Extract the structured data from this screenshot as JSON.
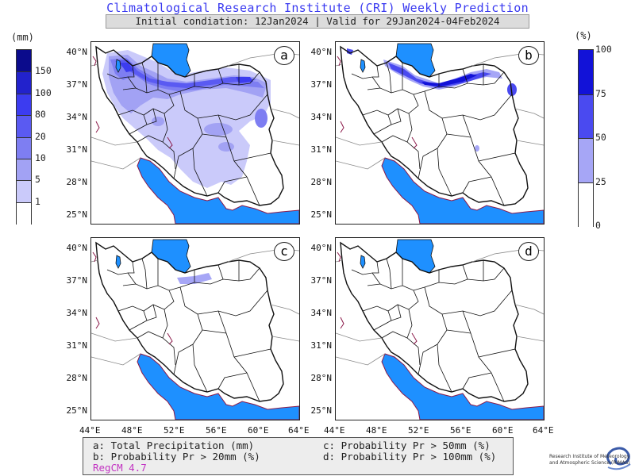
{
  "title": "Climatological Research Institute (CRI) Weekly Prediction",
  "subtitle": "Initial condiation: 12Jan2024 | Valid for 29Jan2024-04Feb2024",
  "colorbar_left": {
    "unit": "(mm)",
    "ticks": [
      "150",
      "100",
      "80",
      "20",
      "10",
      "5",
      "1"
    ],
    "colors": [
      "#0b0b8c",
      "#2222cc",
      "#3c3cf0",
      "#5a5af2",
      "#7e7ef2",
      "#a2a2f4",
      "#cacafa",
      "#ffffff"
    ]
  },
  "colorbar_right": {
    "unit": "(%)",
    "ticks": [
      "100",
      "75",
      "50",
      "25",
      "0"
    ],
    "colors": [
      "#1212d8",
      "#4a4af0",
      "#a6a6f6",
      "#ffffff"
    ]
  },
  "panels": [
    {
      "label": "a"
    },
    {
      "label": "b"
    },
    {
      "label": "c"
    },
    {
      "label": "d"
    }
  ],
  "lat_labels": [
    "40°N",
    "37°N",
    "34°N",
    "31°N",
    "28°N",
    "25°N"
  ],
  "lon_labels": [
    "44°E",
    "48°E",
    "52°E",
    "56°E",
    "60°E",
    "64°E"
  ],
  "legend": {
    "a": "a: Total Precipitation (mm)",
    "b": "b: Probability Pr > 20mm (%)",
    "c": "c: Probability Pr > 50mm (%)",
    "d": "d: Probability Pr > 100mm (%)",
    "model": "RegCM 4.7"
  },
  "logo": {
    "line1": "Research Institute of Meteorology",
    "line2": "and Atmospheric Science (RIMAS)"
  },
  "colors": {
    "sea": "#1e90ff",
    "border": "#111111",
    "coast": "#8b1a4a",
    "title": "#3a3af0"
  }
}
